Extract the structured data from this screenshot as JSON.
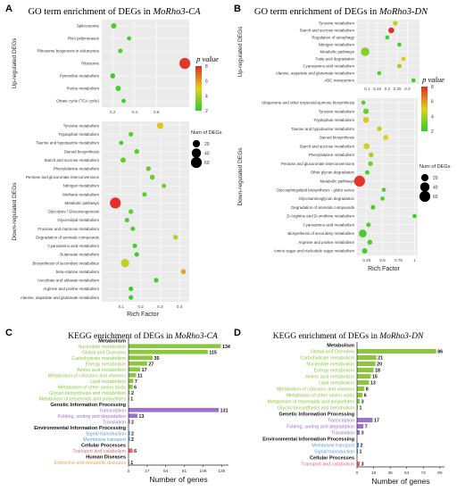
{
  "chart_data": [
    {
      "type": "scatter",
      "panel_label": "A",
      "title_prefix": "GO term enrichment of DEGs in ",
      "title_gene": "MoRho3-CA",
      "xlabel": "Rich Factor",
      "groups": [
        {
          "name": "Up-regulated DEGs",
          "xlim": [
            0.1,
            0.9
          ],
          "xticks": [
            0.2,
            0.4,
            0.6
          ],
          "terms": [
            {
              "label": "Spliceosome",
              "x": 0.21,
              "n": 8,
              "p": 2.6
            },
            {
              "label": "RNA polymerases",
              "x": 0.35,
              "n": 3,
              "p": 2.4
            },
            {
              "label": "Ribosome biogenesis in eukaryotes",
              "x": 0.27,
              "n": 4,
              "p": 2.5
            },
            {
              "label": "Ribosome",
              "x": 0.86,
              "n": 60,
              "p": 7.8
            },
            {
              "label": "Pyrimidine metabolism",
              "x": 0.2,
              "n": 6,
              "p": 2.3
            },
            {
              "label": "Purine metabolism",
              "x": 0.25,
              "n": 7,
              "p": 2.4
            },
            {
              "label": "Citrate cycle (TCA cycle)",
              "x": 0.3,
              "n": 3,
              "p": 2.2
            }
          ]
        },
        {
          "name": "Down-regulated DEGs",
          "xlim": [
            0.0,
            0.45
          ],
          "xticks": [
            0.1,
            0.2,
            0.3,
            0.4
          ],
          "terms": [
            {
              "label": "Tyrosine metabolism",
              "x": 0.3,
              "n": 15,
              "p": 5.2
            },
            {
              "label": "Tryptophan metabolism",
              "x": 0.15,
              "n": 4,
              "p": 2.6
            },
            {
              "label": "Taurine and hypotaurine metabolism",
              "x": 0.1,
              "n": 3,
              "p": 2.4
            },
            {
              "label": "Steroid biosynthesis",
              "x": 0.18,
              "n": 5,
              "p": 2.7
            },
            {
              "label": "Starch and sucrose metabolism",
              "x": 0.11,
              "n": 7,
              "p": 2.8
            },
            {
              "label": "Phenylalanine metabolism",
              "x": 0.24,
              "n": 5,
              "p": 2.9
            },
            {
              "label": "Pentose and glucuronate interconversions",
              "x": 0.26,
              "n": 6,
              "p": 3.0
            },
            {
              "label": "Nitrogen metabolism",
              "x": 0.32,
              "n": 4,
              "p": 3.2
            },
            {
              "label": "Methane metabolism",
              "x": 0.22,
              "n": 4,
              "p": 2.7
            },
            {
              "label": "Metabolic pathways",
              "x": 0.07,
              "n": 60,
              "p": 7.9
            },
            {
              "label": "Glycolysis / Gluconeogenesis",
              "x": 0.15,
              "n": 5,
              "p": 2.8
            },
            {
              "label": "Glycerolipid metabolism",
              "x": 0.13,
              "n": 4,
              "p": 2.5
            },
            {
              "label": "Fructose and mannose metabolism",
              "x": 0.16,
              "n": 4,
              "p": 2.5
            },
            {
              "label": "Degradation of aromatic compounds",
              "x": 0.38,
              "n": 5,
              "p": 4.2
            },
            {
              "label": "Cyanoamino acid metabolism",
              "x": 0.17,
              "n": 4,
              "p": 2.4
            },
            {
              "label": "Butanoate metabolism",
              "x": 0.18,
              "n": 4,
              "p": 2.3
            },
            {
              "label": "Biosynthesis of secondary metabolites",
              "x": 0.12,
              "n": 30,
              "p": 4.5
            },
            {
              "label": "beta-Alanine metabolism",
              "x": 0.42,
              "n": 6,
              "p": 5.8
            },
            {
              "label": "Ascorbate and aldarate metabolism",
              "x": 0.28,
              "n": 4,
              "p": 2.3
            },
            {
              "label": "Arginine and proline metabolism",
              "x": 0.15,
              "n": 4,
              "p": 2.2
            },
            {
              "label": "Alanine, aspartate and glutamate metabolism",
              "x": 0.15,
              "n": 4,
              "p": 2.1
            }
          ]
        }
      ],
      "colorbar": {
        "title": "p value",
        "range": [
          2,
          8
        ],
        "ticks": [
          2,
          4,
          6,
          8
        ],
        "low_color": "#2ecc2e",
        "high_color": "#e32a2a"
      },
      "size_legend": {
        "title": "Num of DEGs",
        "values": [
          20,
          40,
          60
        ]
      }
    },
    {
      "type": "scatter",
      "panel_label": "B",
      "title_prefix": "GO term enrichment of DEGs in ",
      "title_gene": "MoRho3-DN",
      "xlabel": "Rich Factor",
      "groups": [
        {
          "name": "Up-regulated DEGs",
          "xlim": [
            0.05,
            0.36
          ],
          "xticks": [
            0.1,
            0.15,
            0.2,
            0.25,
            0.3
          ],
          "terms": [
            {
              "label": "Tyrosine metabolism",
              "x": 0.24,
              "n": 5,
              "p": 4.5
            },
            {
              "label": "Starch and sucrose metabolism",
              "x": 0.22,
              "n": 10,
              "p": 7.9
            },
            {
              "label": "Regulation of autophagy",
              "x": 0.2,
              "n": 3,
              "p": 2.5
            },
            {
              "label": "Nitrogen metabolism",
              "x": 0.26,
              "n": 3,
              "p": 2.4
            },
            {
              "label": "Metabolic pathways",
              "x": 0.09,
              "n": 30,
              "p": 3.5
            },
            {
              "label": "Fatty acid degradation",
              "x": 0.28,
              "n": 4,
              "p": 4.8
            },
            {
              "label": "Cyanoamino acid metabolism",
              "x": 0.26,
              "n": 4,
              "p": 4.0
            },
            {
              "label": "Alanine, aspartate and glutamate metabolism",
              "x": 0.16,
              "n": 3,
              "p": 2.6
            },
            {
              "label": "ABC transporters",
              "x": 0.33,
              "n": 3,
              "p": 2.3
            }
          ]
        },
        {
          "name": "Down-regulated DEGs",
          "xlim": [
            0.1,
            1.05
          ],
          "xticks": [
            0.25,
            0.5,
            0.75,
            1.0
          ],
          "terms": [
            {
              "label": "Ubiquinone and other terpenoid-quinone biosynthesis",
              "x": 0.2,
              "n": 3,
              "p": 2.8
            },
            {
              "label": "Tyrosine metabolism",
              "x": 0.24,
              "n": 8,
              "p": 3.0
            },
            {
              "label": "Tryptophan metabolism",
              "x": 0.24,
              "n": 10,
              "p": 5.2
            },
            {
              "label": "Taurine and hypotaurine metabolism",
              "x": 0.45,
              "n": 5,
              "p": 4.5
            },
            {
              "label": "Steroid biosynthesis",
              "x": 0.55,
              "n": 8,
              "p": 5.0
            },
            {
              "label": "Starch and sucrose metabolism",
              "x": 0.25,
              "n": 12,
              "p": 4.8
            },
            {
              "label": "Phenylalanine metabolism",
              "x": 0.32,
              "n": 6,
              "p": 4.2
            },
            {
              "label": "Pentose and glucuronate interconversions",
              "x": 0.31,
              "n": 5,
              "p": 3.0
            },
            {
              "label": "Other glycan degradation",
              "x": 0.26,
              "n": 4,
              "p": 2.6
            },
            {
              "label": "Metabolic pathways",
              "x": 0.14,
              "n": 60,
              "p": 7.8
            },
            {
              "label": "Glycosphingolipid biosynthesis - globo series",
              "x": 0.52,
              "n": 3,
              "p": 2.8
            },
            {
              "label": "Glycosaminoglycan degradation",
              "x": 0.5,
              "n": 3,
              "p": 2.7
            },
            {
              "label": "Degradation of aromatic compounds",
              "x": 0.35,
              "n": 4,
              "p": 2.4
            },
            {
              "label": "D-Arginine and D-ornithine metabolism",
              "x": 1.0,
              "n": 3,
              "p": 2.2
            },
            {
              "label": "Cyanoamino acid metabolism",
              "x": 0.28,
              "n": 4,
              "p": 2.6
            },
            {
              "label": "Biosynthesis of secondary metabolites",
              "x": 0.19,
              "n": 25,
              "p": 2.5
            },
            {
              "label": "Arginine and proline metabolism",
              "x": 0.3,
              "n": 6,
              "p": 2.6
            },
            {
              "label": "Amino sugar and nucleotide sugar metabolism",
              "x": 0.22,
              "n": 8,
              "p": 2.5
            }
          ]
        }
      ],
      "colorbar": {
        "title": "p value",
        "range": [
          2,
          8
        ],
        "ticks": [
          2,
          4,
          6,
          8
        ],
        "low_color": "#2ecc2e",
        "high_color": "#e32a2a"
      },
      "size_legend": {
        "title": "Num of DEGs",
        "values": [
          20,
          40,
          60
        ]
      }
    },
    {
      "type": "bar",
      "orientation": "horizontal",
      "panel_label": "C",
      "title_prefix": "KEGG enrichment of DEGs in ",
      "title_gene": "MoRho3-CA",
      "xlabel": "Number of genes",
      "xlim": [
        0,
        145
      ],
      "xticks": [
        0,
        27,
        54,
        81,
        108,
        135
      ],
      "rows": [
        {
          "label": "Metabolism",
          "kind": "header"
        },
        {
          "label": "Nucleotide metabolism",
          "value": 134,
          "cat": "metabolism"
        },
        {
          "label": "Global and Overview",
          "value": 115,
          "cat": "metabolism"
        },
        {
          "label": "Carbohydrate metabolism",
          "value": 35,
          "cat": "metabolism"
        },
        {
          "label": "Energy metabolism",
          "value": 27,
          "cat": "metabolism"
        },
        {
          "label": "Amino acid metabolism",
          "value": 17,
          "cat": "metabolism"
        },
        {
          "label": "Metabolism of cofactors and vitamins",
          "value": 11,
          "cat": "metabolism"
        },
        {
          "label": "Lipid metabolism",
          "value": 7,
          "cat": "metabolism"
        },
        {
          "label": "Metabolism of other amino acids",
          "value": 6,
          "cat": "metabolism"
        },
        {
          "label": "Glycan biosynthesis and metabolism",
          "value": 2,
          "cat": "metabolism"
        },
        {
          "label": "Metabolism of terpenoids and polyketides",
          "value": 1,
          "cat": "metabolism"
        },
        {
          "label": "Genetic Information Processing",
          "kind": "header"
        },
        {
          "label": "Transcription",
          "value": 131,
          "cat": "genetic"
        },
        {
          "label": "Folding, sorting and degradation",
          "value": 13,
          "cat": "genetic"
        },
        {
          "label": "Translation",
          "value": 2,
          "cat": "genetic"
        },
        {
          "label": "Environmental Information Processing",
          "kind": "header"
        },
        {
          "label": "Signal transduction",
          "value": 2,
          "cat": "environmental"
        },
        {
          "label": "Membrane transport",
          "value": 2,
          "cat": "environmental"
        },
        {
          "label": "Cellular Processes",
          "kind": "header"
        },
        {
          "label": "Transport and catabolism",
          "value": 6,
          "cat": "cellular"
        },
        {
          "label": "Human Diseases",
          "kind": "header"
        },
        {
          "label": "Endocrine and metabolic diseases",
          "value": 1,
          "cat": "disease"
        }
      ],
      "colors": {
        "metabolism": "#8cc63f",
        "genetic": "#9b72cf",
        "environmental": "#5b9bd5",
        "cellular": "#e8696b",
        "disease": "#f0a04b"
      }
    },
    {
      "type": "bar",
      "orientation": "horizontal",
      "panel_label": "D",
      "title_prefix": "KEGG enrichment of DEGs in ",
      "title_gene": "MoRho3-DN",
      "xlabel": "Number of genes",
      "xlim": [
        0,
        95
      ],
      "xticks": [
        0,
        18,
        36,
        54,
        72,
        90
      ],
      "rows": [
        {
          "label": "Metabolism",
          "kind": "header"
        },
        {
          "label": "Global and Overview",
          "value": 86,
          "cat": "metabolism"
        },
        {
          "label": "Carbohydrate metabolism",
          "value": 21,
          "cat": "metabolism"
        },
        {
          "label": "Nucleotide metabolism",
          "value": 20,
          "cat": "metabolism"
        },
        {
          "label": "Energy metabolism",
          "value": 18,
          "cat": "metabolism"
        },
        {
          "label": "Amino acid metabolism",
          "value": 15,
          "cat": "metabolism"
        },
        {
          "label": "Lipid metabolism",
          "value": 13,
          "cat": "metabolism"
        },
        {
          "label": "Metabolism of cofactors and vitamins",
          "value": 8,
          "cat": "metabolism"
        },
        {
          "label": "Metabolism of other amino acids",
          "value": 6,
          "cat": "metabolism"
        },
        {
          "label": "Metabolism of terpenoids and polyketides",
          "value": 3,
          "cat": "metabolism"
        },
        {
          "label": "Glycan biosynthesis and metabolism",
          "value": 1,
          "cat": "metabolism"
        },
        {
          "label": "Genetic Information Processing",
          "kind": "header"
        },
        {
          "label": "Transcription",
          "value": 17,
          "cat": "genetic"
        },
        {
          "label": "Folding, sorting and degradation",
          "value": 7,
          "cat": "genetic"
        },
        {
          "label": "Translation",
          "value": 3,
          "cat": "genetic"
        },
        {
          "label": "Environmental Information Processing",
          "kind": "header"
        },
        {
          "label": "Membrane transport",
          "value": 2,
          "cat": "environmental"
        },
        {
          "label": "Signal transduction",
          "value": 1,
          "cat": "environmental"
        },
        {
          "label": "Cellular Processes",
          "kind": "header"
        },
        {
          "label": "Transport and catabolism",
          "value": 3,
          "cat": "cellular"
        }
      ],
      "colors": {
        "metabolism": "#8cc63f",
        "genetic": "#9b72cf",
        "environmental": "#5b9bd5",
        "cellular": "#e8696b",
        "disease": "#f0a04b"
      }
    }
  ]
}
